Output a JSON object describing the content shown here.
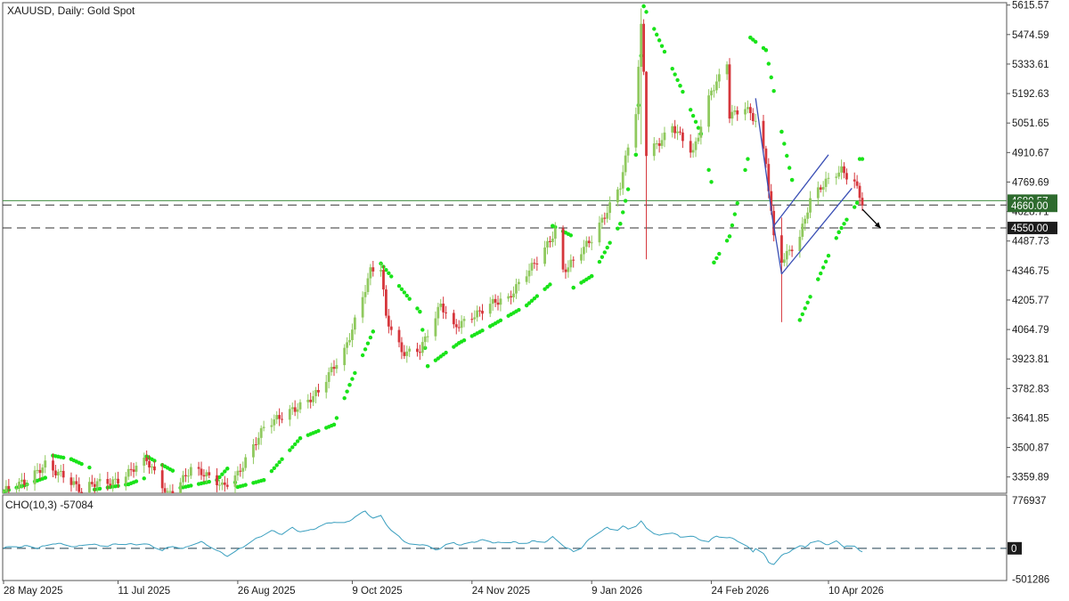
{
  "chart_data": [
    {
      "type": "candlestick",
      "title": "XAUUSD, Daily:  Gold Spot",
      "x_tick_labels": [
        "28 May 2025",
        "11 Jul 2025",
        "26 Aug 2025",
        "9 Oct 2025",
        "24 Nov 2025",
        "9 Jan 2026",
        "24 Feb 2026",
        "10 Apr 2026"
      ],
      "y_tick_labels": [
        "5615.57",
        "5474.59",
        "5333.61",
        "5192.63",
        "5051.65",
        "4910.67",
        "4769.69",
        "4628.71",
        "4487.73",
        "4346.75",
        "4205.77",
        "4064.79",
        "3923.81",
        "3782.83",
        "3641.85",
        "3500.87",
        "3359.89"
      ],
      "ylim": [
        3282,
        5627
      ],
      "overlapped_tick_label": "4628.71",
      "current_price_tag": "4660.00",
      "hidden_current_price_tag": "4680.57",
      "level_tags": [
        "4660.00",
        "4550.00"
      ],
      "current_price": 4680.57,
      "levels": [
        4660.0,
        4550.0
      ],
      "close_path": [
        {
          "d": "2025-05-28",
          "v": 3290
        },
        {
          "d": "2025-06-06",
          "v": 3330
        },
        {
          "d": "2025-06-13",
          "v": 3432
        },
        {
          "d": "2025-06-20",
          "v": 3368
        },
        {
          "d": "2025-06-27",
          "v": 3280
        },
        {
          "d": "2025-07-03",
          "v": 3338
        },
        {
          "d": "2025-07-11",
          "v": 3352
        },
        {
          "d": "2025-07-22",
          "v": 3430
        },
        {
          "d": "2025-07-30",
          "v": 3286
        },
        {
          "d": "2025-08-08",
          "v": 3395
        },
        {
          "d": "2025-08-20",
          "v": 3318
        },
        {
          "d": "2025-08-26",
          "v": 3385
        },
        {
          "d": "2025-09-05",
          "v": 3585
        },
        {
          "d": "2025-09-16",
          "v": 3690
        },
        {
          "d": "2025-09-26",
          "v": 3760
        },
        {
          "d": "2025-10-06",
          "v": 3960
        },
        {
          "d": "2025-10-16",
          "v": 4350
        },
        {
          "d": "2025-10-20",
          "v": 4358
        },
        {
          "d": "2025-10-22",
          "v": 4110
        },
        {
          "d": "2025-10-28",
          "v": 3950
        },
        {
          "d": "2025-11-04",
          "v": 3980
        },
        {
          "d": "2025-11-12",
          "v": 4180
        },
        {
          "d": "2025-11-17",
          "v": 4060
        },
        {
          "d": "2025-11-24",
          "v": 4130
        },
        {
          "d": "2025-12-01",
          "v": 4200
        },
        {
          "d": "2025-12-08",
          "v": 4200
        },
        {
          "d": "2025-12-15",
          "v": 4330
        },
        {
          "d": "2025-12-26",
          "v": 4540
        },
        {
          "d": "2025-12-29",
          "v": 4340
        },
        {
          "d": "2026-01-02",
          "v": 4380
        },
        {
          "d": "2026-01-09",
          "v": 4500
        },
        {
          "d": "2026-01-14",
          "v": 4620
        },
        {
          "d": "2026-01-20",
          "v": 4760
        },
        {
          "d": "2026-01-26",
          "v": 5100
        },
        {
          "d": "2026-01-28",
          "v": 5500
        },
        {
          "d": "2026-01-29",
          "v": 5300
        },
        {
          "d": "2026-01-30",
          "v": 4900
        },
        {
          "d": "2026-02-03",
          "v": 4950
        },
        {
          "d": "2026-02-09",
          "v": 5050
        },
        {
          "d": "2026-02-17",
          "v": 4900
        },
        {
          "d": "2026-02-24",
          "v": 5200
        },
        {
          "d": "2026-03-02",
          "v": 5350
        },
        {
          "d": "2026-03-03",
          "v": 5100
        },
        {
          "d": "2026-03-09",
          "v": 5130
        },
        {
          "d": "2026-03-13",
          "v": 5050
        },
        {
          "d": "2026-03-17",
          "v": 4850
        },
        {
          "d": "2026-03-20",
          "v": 4500
        },
        {
          "d": "2026-03-23",
          "v": 4400
        },
        {
          "d": "2026-03-30",
          "v": 4520
        },
        {
          "d": "2026-04-03",
          "v": 4680
        },
        {
          "d": "2026-04-09",
          "v": 4760
        },
        {
          "d": "2026-04-15",
          "v": 4830
        },
        {
          "d": "2026-04-20",
          "v": 4780
        },
        {
          "d": "2026-04-23",
          "v": 4680
        }
      ],
      "wicks": [
        {
          "d": "2026-01-28",
          "high": 5600,
          "low": 4950
        },
        {
          "d": "2026-01-30",
          "high": 5300,
          "low": 4400
        },
        {
          "d": "2026-03-23",
          "high": 4600,
          "low": 4100
        }
      ],
      "parabolic_sar": [
        {
          "d": "2025-05-28",
          "v": 3290
        },
        {
          "d": "2025-06-05",
          "v": 3320
        },
        {
          "d": "2025-06-13",
          "v": 3356
        },
        {
          "d": "2025-06-16",
          "v": 3462
        },
        {
          "d": "2025-06-23",
          "v": 3445
        },
        {
          "d": "2025-06-30",
          "v": 3405
        },
        {
          "d": "2025-07-02",
          "v": 3300
        },
        {
          "d": "2025-07-15",
          "v": 3325
        },
        {
          "d": "2025-07-21",
          "v": 3353
        },
        {
          "d": "2025-07-22",
          "v": 3458
        },
        {
          "d": "2025-08-01",
          "v": 3390
        },
        {
          "d": "2025-08-04",
          "v": 3308
        },
        {
          "d": "2025-08-18",
          "v": 3345
        },
        {
          "d": "2025-08-22",
          "v": 3400
        },
        {
          "d": "2025-08-26",
          "v": 3312
        },
        {
          "d": "2025-09-05",
          "v": 3345
        },
        {
          "d": "2025-09-19",
          "v": 3545
        },
        {
          "d": "2025-10-02",
          "v": 3610
        },
        {
          "d": "2025-10-08",
          "v": 3800
        },
        {
          "d": "2025-10-17",
          "v": 4055
        },
        {
          "d": "2025-10-20",
          "v": 4380
        },
        {
          "d": "2025-11-04",
          "v": 4150
        },
        {
          "d": "2025-11-07",
          "v": 3890
        },
        {
          "d": "2025-11-19",
          "v": 4000
        },
        {
          "d": "2025-12-01",
          "v": 4080
        },
        {
          "d": "2025-12-15",
          "v": 4180
        },
        {
          "d": "2025-12-24",
          "v": 4280
        },
        {
          "d": "2025-12-25",
          "v": 4560
        },
        {
          "d": "2026-01-01",
          "v": 4515
        },
        {
          "d": "2026-01-02",
          "v": 4265
        },
        {
          "d": "2026-01-09",
          "v": 4320
        },
        {
          "d": "2026-01-20",
          "v": 4570
        },
        {
          "d": "2026-01-26",
          "v": 4900
        },
        {
          "d": "2026-01-29",
          "v": 5610
        },
        {
          "d": "2026-02-12",
          "v": 5230
        },
        {
          "d": "2026-02-20",
          "v": 5000
        },
        {
          "d": "2026-02-24",
          "v": 4770
        },
        {
          "d": "2026-02-25",
          "v": 4385
        },
        {
          "d": "2026-03-03",
          "v": 4510
        },
        {
          "d": "2026-03-10",
          "v": 4880
        },
        {
          "d": "2026-03-11",
          "v": 5460
        },
        {
          "d": "2026-03-17",
          "v": 5400
        },
        {
          "d": "2026-03-23",
          "v": 5010
        },
        {
          "d": "2026-03-27",
          "v": 4780
        },
        {
          "d": "2026-03-30",
          "v": 4110
        },
        {
          "d": "2026-04-06",
          "v": 4305
        },
        {
          "d": "2026-04-14",
          "v": 4530
        },
        {
          "d": "2026-04-21",
          "v": 4670
        },
        {
          "d": "2026-04-22",
          "v": 4880
        },
        {
          "d": "2026-04-23",
          "v": 4880
        }
      ],
      "annotations": {
        "trendline": [
          {
            "d": "2026-03-13",
            "v": 5170
          },
          {
            "d": "2026-03-20",
            "v": 4550
          }
        ],
        "channel_upper": [
          {
            "d": "2026-03-20",
            "v": 4560
          },
          {
            "d": "2026-04-10",
            "v": 4900
          }
        ],
        "channel_lower": [
          {
            "d": "2026-03-23",
            "v": 4330
          },
          {
            "d": "2026-04-19",
            "v": 4740
          }
        ],
        "arrow": [
          {
            "d": "2026-04-23",
            "v": 4640
          },
          {
            "d": "2026-04-30",
            "v": 4550
          }
        ]
      },
      "colors": {
        "bull": "#8fc95e",
        "bear": "#d6363c",
        "sar": "#19e319",
        "level": "#3d8b3d",
        "tag_bg": "#2e6b2e",
        "trendline": "#3a4fb5",
        "arrow": "#000000"
      }
    },
    {
      "type": "line",
      "title": "CHO(10,3) -57084",
      "indicator": "CHO(10,3)",
      "last_value": -57084,
      "y_tick_labels": [
        "776937",
        "0",
        "-501286"
      ],
      "ylim": [
        -520000,
        860000
      ],
      "zero_tag": "0",
      "series": [
        {
          "values": [
            {
              "d": "2025-05-28",
              "v": 0
            },
            {
              "d": "2025-06-01",
              "v": 40000
            },
            {
              "d": "2025-06-04",
              "v": 20000
            },
            {
              "d": "2025-06-07",
              "v": 50000
            },
            {
              "d": "2025-06-10",
              "v": 0
            },
            {
              "d": "2025-06-13",
              "v": 40000
            },
            {
              "d": "2025-06-16",
              "v": 80000
            },
            {
              "d": "2025-06-21",
              "v": 60000
            },
            {
              "d": "2025-06-25",
              "v": 20000
            },
            {
              "d": "2025-06-29",
              "v": 80000
            },
            {
              "d": "2025-07-03",
              "v": 50000
            },
            {
              "d": "2025-07-07",
              "v": 40000
            },
            {
              "d": "2025-07-12",
              "v": 80000
            },
            {
              "d": "2025-07-17",
              "v": 60000
            },
            {
              "d": "2025-07-21",
              "v": 80000
            },
            {
              "d": "2025-07-25",
              "v": 20000
            },
            {
              "d": "2025-07-28",
              "v": -30000
            },
            {
              "d": "2025-08-01",
              "v": 40000
            },
            {
              "d": "2025-08-05",
              "v": -10000
            },
            {
              "d": "2025-08-09",
              "v": 80000
            },
            {
              "d": "2025-08-12",
              "v": 100000
            },
            {
              "d": "2025-08-15",
              "v": 40000
            },
            {
              "d": "2025-08-19",
              "v": -60000
            },
            {
              "d": "2025-08-22",
              "v": -120000
            },
            {
              "d": "2025-08-26",
              "v": -30000
            },
            {
              "d": "2025-08-30",
              "v": 80000
            },
            {
              "d": "2025-09-04",
              "v": 200000
            },
            {
              "d": "2025-09-08",
              "v": 280000
            },
            {
              "d": "2025-09-12",
              "v": 230000
            },
            {
              "d": "2025-09-16",
              "v": 330000
            },
            {
              "d": "2025-09-20",
              "v": 250000
            },
            {
              "d": "2025-09-24",
              "v": 310000
            },
            {
              "d": "2025-09-28",
              "v": 380000
            },
            {
              "d": "2025-10-02",
              "v": 430000
            },
            {
              "d": "2025-10-05",
              "v": 380000
            },
            {
              "d": "2025-10-08",
              "v": 450000
            },
            {
              "d": "2025-10-14",
              "v": 600000
            },
            {
              "d": "2025-10-17",
              "v": 480000
            },
            {
              "d": "2025-10-20",
              "v": 520000
            },
            {
              "d": "2025-10-24",
              "v": 280000
            },
            {
              "d": "2025-10-28",
              "v": 150000
            },
            {
              "d": "2025-11-01",
              "v": 30000
            },
            {
              "d": "2025-11-05",
              "v": 70000
            },
            {
              "d": "2025-11-10",
              "v": -30000
            },
            {
              "d": "2025-11-14",
              "v": 50000
            },
            {
              "d": "2025-11-17",
              "v": 90000
            },
            {
              "d": "2025-11-20",
              "v": 50000
            },
            {
              "d": "2025-11-24",
              "v": 100000
            },
            {
              "d": "2025-11-28",
              "v": 130000
            },
            {
              "d": "2025-12-02",
              "v": 100000
            },
            {
              "d": "2025-12-06",
              "v": 80000
            },
            {
              "d": "2025-12-10",
              "v": 110000
            },
            {
              "d": "2025-12-13",
              "v": 50000
            },
            {
              "d": "2025-12-17",
              "v": 120000
            },
            {
              "d": "2025-12-21",
              "v": 80000
            },
            {
              "d": "2025-12-25",
              "v": 180000
            },
            {
              "d": "2025-12-30",
              "v": 20000
            },
            {
              "d": "2026-01-03",
              "v": -80000
            },
            {
              "d": "2026-01-07",
              "v": 100000
            },
            {
              "d": "2026-01-11",
              "v": 250000
            },
            {
              "d": "2026-01-15",
              "v": 330000
            },
            {
              "d": "2026-01-18",
              "v": 280000
            },
            {
              "d": "2026-01-21",
              "v": 350000
            },
            {
              "d": "2026-01-24",
              "v": 300000
            },
            {
              "d": "2026-01-28",
              "v": 430000
            },
            {
              "d": "2026-01-31",
              "v": 290000
            },
            {
              "d": "2026-02-04",
              "v": 200000
            },
            {
              "d": "2026-02-08",
              "v": 280000
            },
            {
              "d": "2026-02-12",
              "v": 180000
            },
            {
              "d": "2026-02-15",
              "v": 220000
            },
            {
              "d": "2026-02-19",
              "v": 150000
            },
            {
              "d": "2026-02-23",
              "v": 110000
            },
            {
              "d": "2026-02-26",
              "v": 200000
            },
            {
              "d": "2026-03-01",
              "v": 180000
            },
            {
              "d": "2026-03-05",
              "v": 150000
            },
            {
              "d": "2026-03-09",
              "v": 50000
            },
            {
              "d": "2026-03-12",
              "v": -50000
            },
            {
              "d": "2026-03-14",
              "v": 60000
            },
            {
              "d": "2026-03-18",
              "v": -230000
            },
            {
              "d": "2026-03-20",
              "v": -250000
            },
            {
              "d": "2026-03-23",
              "v": -120000
            },
            {
              "d": "2026-03-25",
              "v": -80000
            },
            {
              "d": "2026-03-29",
              "v": 40000
            },
            {
              "d": "2026-04-01",
              "v": 20000
            },
            {
              "d": "2026-04-04",
              "v": 130000
            },
            {
              "d": "2026-04-07",
              "v": 100000
            },
            {
              "d": "2026-04-10",
              "v": 60000
            },
            {
              "d": "2026-04-13",
              "v": 110000
            },
            {
              "d": "2026-04-16",
              "v": 30000
            },
            {
              "d": "2026-04-19",
              "v": 50000
            },
            {
              "d": "2026-04-23",
              "v": -57084
            }
          ]
        }
      ],
      "colors": {
        "line": "#3a9fbf",
        "zero": "#1f3f4f"
      }
    }
  ]
}
